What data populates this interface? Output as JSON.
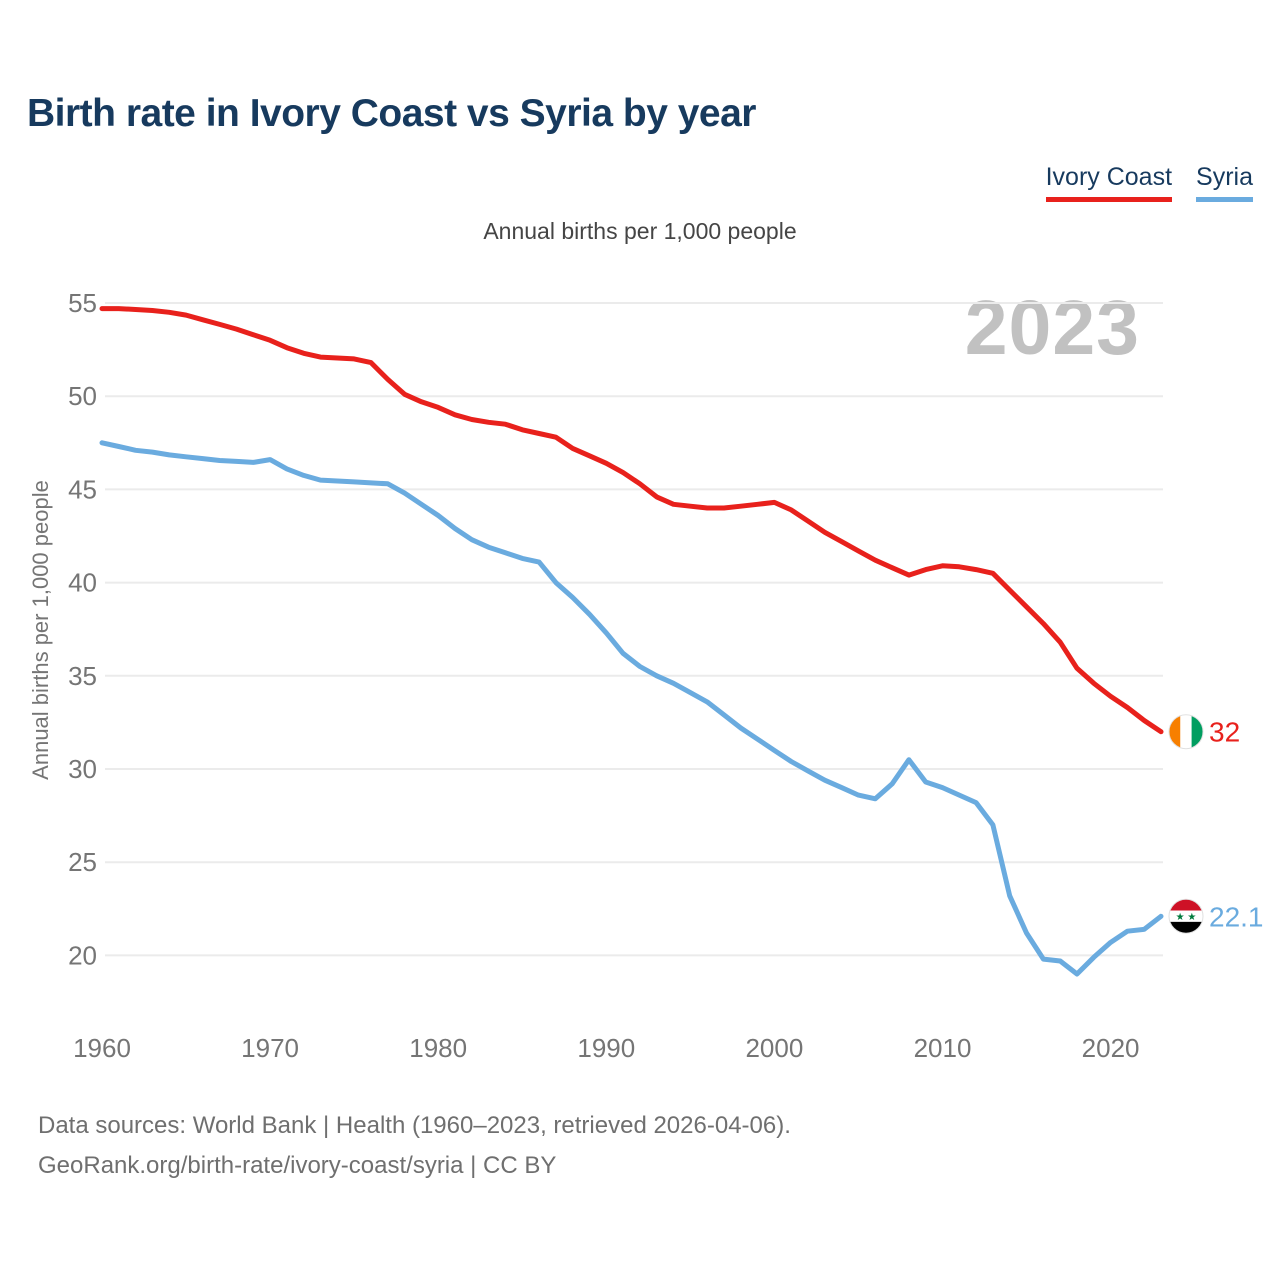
{
  "title": "Birth rate in Ivory Coast vs Syria by year",
  "subtitle": "Annual births per 1,000 people",
  "y_axis_label": "Annual births per 1,000 people",
  "watermark": "2023",
  "legend": [
    {
      "label": "Ivory Coast",
      "color": "#e8211c"
    },
    {
      "label": "Syria",
      "color": "#6aabdf"
    }
  ],
  "end_labels": [
    {
      "series": "Ivory Coast",
      "value": "32",
      "flag": "ivory-coast",
      "color": "#e8211c"
    },
    {
      "series": "Syria",
      "value": "22.1",
      "flag": "syria",
      "color": "#6aabdf"
    }
  ],
  "footer": {
    "line1": "Data sources: World Bank | Health (1960–2023, retrieved 2026-04-06).",
    "line2": "GeoRank.org/birth-rate/ivory-coast/syria | CC BY"
  },
  "colors": {
    "title_text": "#173a5e",
    "ivory_coast_line": "#e8211c",
    "syria_line": "#6aabdf",
    "grid": "#ebebeb",
    "tick_text": "#757575",
    "watermark_text": "#c1c1c1",
    "footer_text": "#6f6f6f",
    "flag_ic_orange": "#f77f00",
    "flag_ic_green": "#009e60",
    "flag_sy_red": "#ce1126",
    "flag_sy_green": "#007a3d",
    "flag_sy_black": "#000000"
  },
  "chart_data": {
    "type": "line",
    "title": "Birth rate in Ivory Coast vs Syria by year",
    "subtitle": "Annual births per 1,000 people",
    "xlabel": "",
    "ylabel": "Annual births per 1,000 people",
    "xlim": [
      1960,
      2023
    ],
    "ylim": [
      17,
      56.5
    ],
    "xticks": [
      1960,
      1970,
      1980,
      1990,
      2000,
      2010,
      2020
    ],
    "yticks": [
      20,
      25,
      30,
      35,
      40,
      45,
      50,
      55
    ],
    "grid": "horizontal",
    "legend_position": "top-right",
    "x": [
      1960,
      1961,
      1962,
      1963,
      1964,
      1965,
      1966,
      1967,
      1968,
      1969,
      1970,
      1971,
      1972,
      1973,
      1974,
      1975,
      1976,
      1977,
      1978,
      1979,
      1980,
      1981,
      1982,
      1983,
      1984,
      1985,
      1986,
      1987,
      1988,
      1989,
      1990,
      1991,
      1992,
      1993,
      1994,
      1995,
      1996,
      1997,
      1998,
      1999,
      2000,
      2001,
      2002,
      2003,
      2004,
      2005,
      2006,
      2007,
      2008,
      2009,
      2010,
      2011,
      2012,
      2013,
      2014,
      2015,
      2016,
      2017,
      2018,
      2019,
      2020,
      2021,
      2022,
      2023
    ],
    "series": [
      {
        "name": "Ivory Coast",
        "color": "#e8211c",
        "end_label": "32",
        "values": [
          54.7,
          54.7,
          54.65,
          54.6,
          54.5,
          54.35,
          54.1,
          53.85,
          53.6,
          53.3,
          53.0,
          52.6,
          52.3,
          52.1,
          52.05,
          52.0,
          51.8,
          50.9,
          50.1,
          49.7,
          49.4,
          49.0,
          48.75,
          48.6,
          48.5,
          48.2,
          48.0,
          47.8,
          47.2,
          46.8,
          46.4,
          45.9,
          45.3,
          44.6,
          44.2,
          44.1,
          44.0,
          44.0,
          44.1,
          44.2,
          44.3,
          43.9,
          43.3,
          42.7,
          42.2,
          41.7,
          41.2,
          40.8,
          40.4,
          40.7,
          40.9,
          40.85,
          40.7,
          40.5,
          39.6,
          38.7,
          37.8,
          36.8,
          35.4,
          34.6,
          33.9,
          33.3,
          32.6,
          32.0
        ]
      },
      {
        "name": "Syria",
        "color": "#6aabdf",
        "end_label": "22.1",
        "values": [
          47.5,
          47.3,
          47.1,
          47.0,
          46.85,
          46.75,
          46.65,
          46.55,
          46.5,
          46.45,
          46.6,
          46.1,
          45.75,
          45.5,
          45.45,
          45.4,
          45.35,
          45.3,
          44.8,
          44.2,
          43.6,
          42.9,
          42.3,
          41.9,
          41.6,
          41.3,
          41.1,
          40.0,
          39.2,
          38.3,
          37.3,
          36.2,
          35.5,
          35.0,
          34.6,
          34.1,
          33.6,
          32.9,
          32.2,
          31.6,
          31.0,
          30.4,
          29.9,
          29.4,
          29.0,
          28.6,
          28.4,
          29.2,
          30.5,
          29.3,
          29.0,
          28.6,
          28.2,
          27.0,
          23.2,
          21.2,
          19.8,
          19.7,
          19.0,
          19.9,
          20.7,
          21.3,
          21.4,
          22.1
        ]
      }
    ]
  }
}
